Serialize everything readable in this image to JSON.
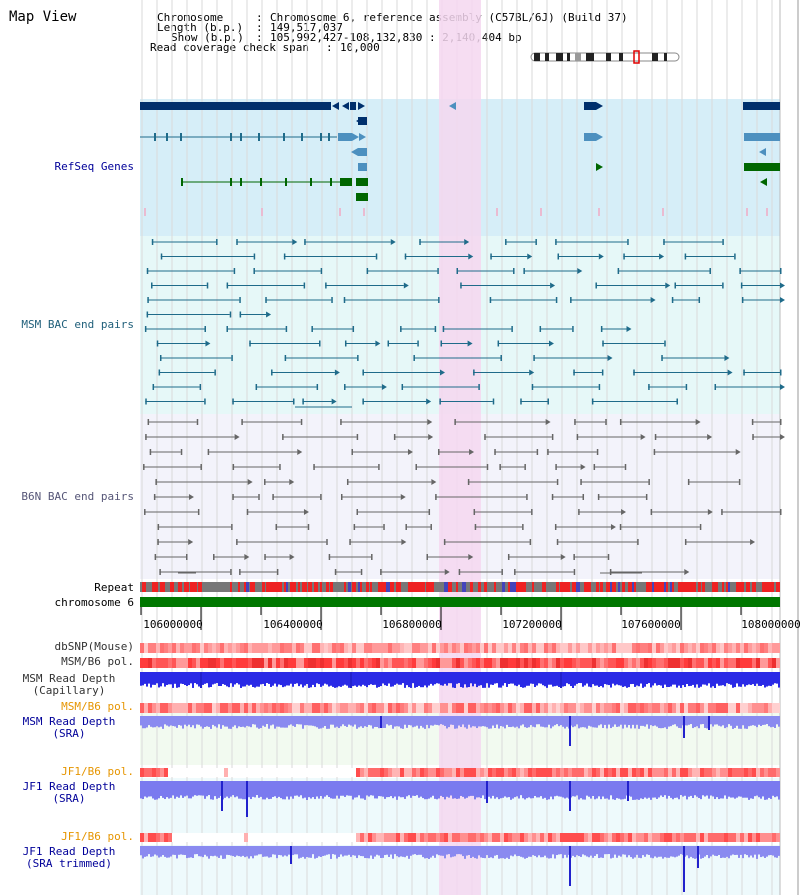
{
  "title": "Map View",
  "info": {
    "chromosome_key": "Chromosome",
    "chromosome_val": "Chromosome 6, reference assembly (C57BL/6J) (Build 37)",
    "length_key": "Length (b.p.)",
    "length_val": "149,517,037",
    "show_key": "Show (b.p.)",
    "show_val": "105,992,427-108,132,830 : 2,140,404 bp",
    "coverage_key": "Read coverage check span",
    "coverage_val": "10,000"
  },
  "tracks": {
    "refseq": "RefSeq Genes",
    "msm_bac": "MSM BAC end pairs",
    "b6n_bac": "B6N BAC end pairs",
    "repeat": "Repeat",
    "chromosome": "chromosome 6",
    "dbsnp": "dbSNP(Mouse)",
    "msm_b6_pol": "MSM/B6 pol.",
    "msm_depth_cap_1": "MSM Read Depth",
    "msm_depth_cap_2": "(Capillary)",
    "msm_b6_pol_2": "MSM/B6 pol.",
    "msm_depth_sra_1": "MSM Read Depth",
    "msm_depth_sra_2": "(SRA)",
    "jf1_pol": "JF1/B6 pol.",
    "jf1_depth_sra_1": "JF1 Read Depth",
    "jf1_depth_sra_2": "(SRA)",
    "jf1_pol_2": "JF1/B6 pol.",
    "jf1_depth_trim_1": "JF1 Read Depth",
    "jf1_depth_trim_2": "(SRA trimmed)"
  },
  "axis": {
    "ticks": [
      "106000000",
      "106400000",
      "106800000",
      "107200000",
      "107600000",
      "108000000"
    ]
  },
  "colors": {
    "refseq_bg": "#d6eef8",
    "bac_bg": "#e6f8f8",
    "highlight": "#f5d7f0",
    "gene_navy": "#002f6c",
    "gene_steel": "#4d90bf",
    "gene_green": "#006600",
    "msm_feature": "#1f6b8a",
    "b6n_feature": "#666666",
    "label_navy": "#000099",
    "label_teal": "#1f5f7a",
    "label_orange": "#e69500",
    "depth_blue": "#2222dd",
    "depth_light": "#8888ff",
    "pol_red": "#ff4040",
    "chrom_green": "#007700"
  }
}
